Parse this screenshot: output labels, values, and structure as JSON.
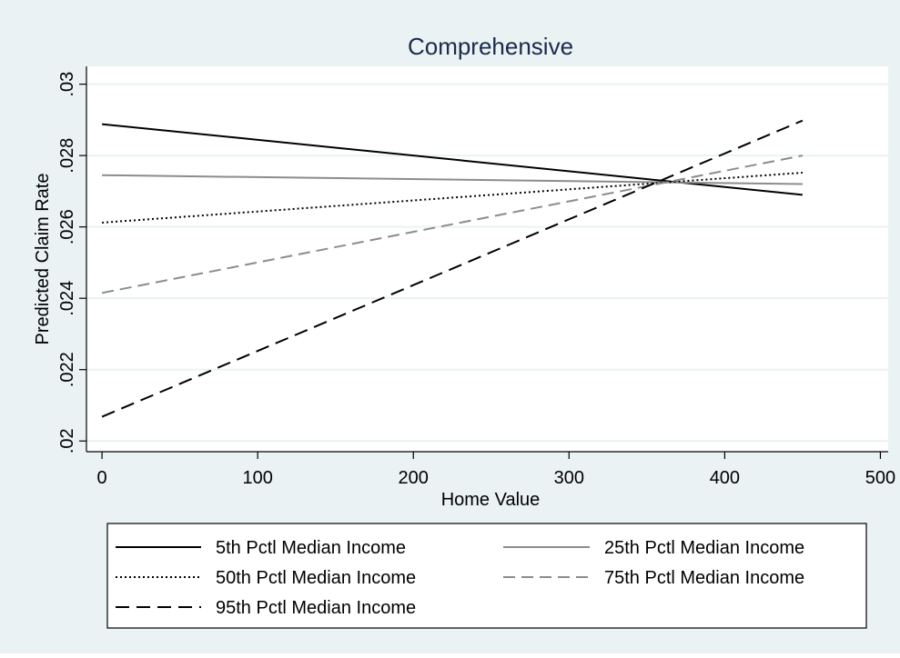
{
  "chart_data": {
    "type": "line",
    "title": "Comprehensive",
    "xlabel": "Home Value",
    "ylabel": "Predicted Claim Rate",
    "xlim": [
      -10,
      505
    ],
    "ylim": [
      0.0197,
      0.0305
    ],
    "x_ticks": [
      0,
      100,
      200,
      300,
      400,
      500
    ],
    "x_tick_labels": [
      "0",
      "100",
      "200",
      "300",
      "400",
      "500"
    ],
    "y_ticks": [
      0.02,
      0.022,
      0.024,
      0.026,
      0.028,
      0.03
    ],
    "y_tick_labels": [
      ".02",
      ".022",
      ".024",
      ".026",
      ".028",
      ".03"
    ],
    "grid": true,
    "legend_position": "bottom",
    "legend_columns": 2,
    "series": [
      {
        "name": "5th Pctl Median Income",
        "x": [
          0,
          450
        ],
        "y": [
          0.02888,
          0.0269
        ],
        "color": "#000000",
        "dash": "solid"
      },
      {
        "name": "25th Pctl Median Income",
        "x": [
          0,
          450
        ],
        "y": [
          0.02745,
          0.0272
        ],
        "color": "#8c8c8c",
        "dash": "solid"
      },
      {
        "name": "50th Pctl Median Income",
        "x": [
          0,
          450
        ],
        "y": [
          0.02612,
          0.02752
        ],
        "color": "#000000",
        "dash": "dotted"
      },
      {
        "name": "75th Pctl Median Income",
        "x": [
          0,
          450
        ],
        "y": [
          0.02415,
          0.028
        ],
        "color": "#8c8c8c",
        "dash": "dashed"
      },
      {
        "name": "95th Pctl Median Income",
        "x": [
          0,
          450
        ],
        "y": [
          0.02068,
          0.02898
        ],
        "color": "#000000",
        "dash": "longdash"
      }
    ],
    "colors": {
      "outer_background": "#eaf2f3",
      "plot_background": "#ffffff",
      "gridline": "#eaf2f3",
      "title": "#1a2b4c"
    }
  }
}
